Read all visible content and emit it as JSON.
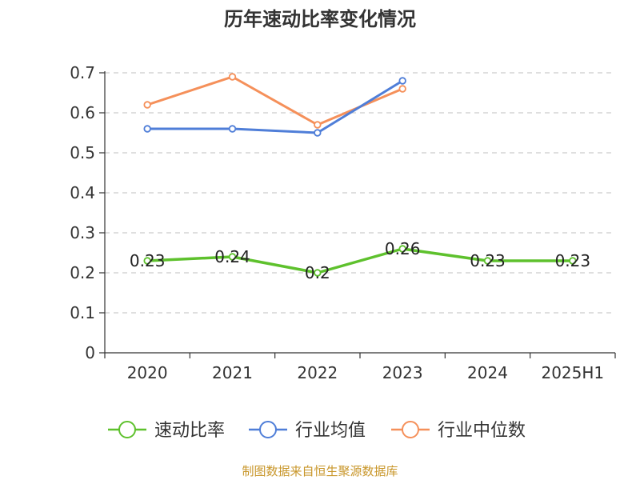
{
  "chart_data": {
    "type": "line",
    "title": "历年速动比率变化情况",
    "categories": [
      "2020",
      "2021",
      "2022",
      "2023",
      "2024",
      "2025H1"
    ],
    "ylim": [
      0,
      0.7
    ],
    "yticks": [
      "0",
      "0.1",
      "0.2",
      "0.3",
      "0.4",
      "0.5",
      "0.6",
      "0.7"
    ],
    "grid": true,
    "legend_position": "bottom",
    "series": [
      {
        "name": "速动比率",
        "color": "#5ec12d",
        "values": [
          0.23,
          0.24,
          0.2,
          0.26,
          0.23,
          0.23
        ],
        "labels": [
          "0.23",
          "0.24",
          "0.2",
          "0.26",
          "0.23",
          "0.23"
        ],
        "show_labels": true
      },
      {
        "name": "行业均值",
        "color": "#4f7ed8",
        "values": [
          0.56,
          0.56,
          0.55,
          0.68,
          null,
          null
        ],
        "show_labels": false
      },
      {
        "name": "行业中位数",
        "color": "#f5905a",
        "values": [
          0.62,
          0.69,
          0.57,
          0.66,
          null,
          null
        ],
        "show_labels": false
      }
    ]
  },
  "source": "制图数据来自恒生聚源数据库"
}
